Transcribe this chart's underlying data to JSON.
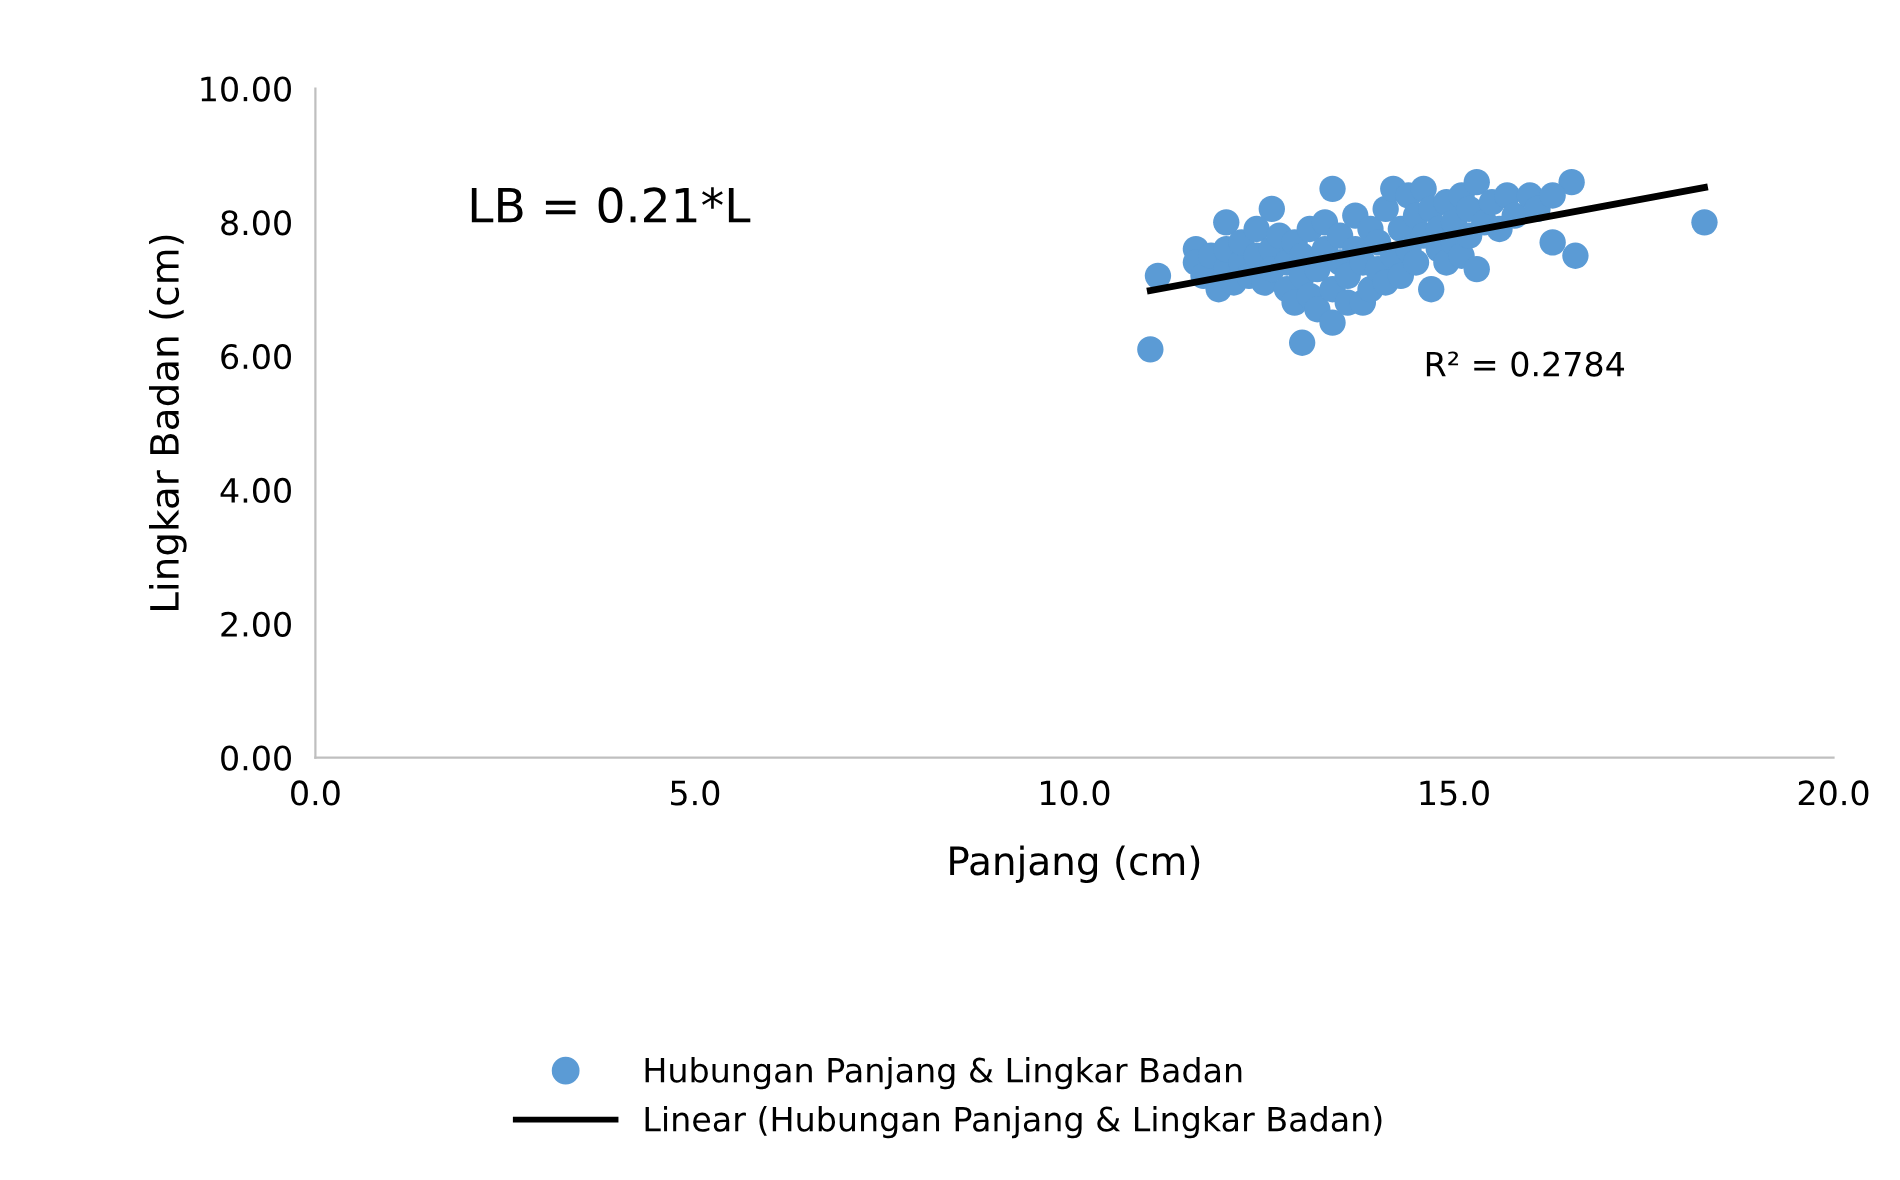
{
  "chart_data": {
    "type": "scatter",
    "xlabel": "Panjang (cm)",
    "ylabel": "Lingkar Badan (cm)",
    "xlim": [
      0,
      20
    ],
    "ylim": [
      0,
      10
    ],
    "xticks": [
      {
        "value": 0,
        "label": "0.0"
      },
      {
        "value": 5,
        "label": "5.0"
      },
      {
        "value": 10,
        "label": "10.0"
      },
      {
        "value": 15,
        "label": "15.0"
      },
      {
        "value": 20,
        "label": "20.0"
      }
    ],
    "yticks": [
      {
        "value": 0,
        "label": "0.00"
      },
      {
        "value": 2,
        "label": "2.00"
      },
      {
        "value": 4,
        "label": "4.00"
      },
      {
        "value": 6,
        "label": "6.00"
      },
      {
        "value": 8,
        "label": "8.00"
      },
      {
        "value": 10,
        "label": "10.00"
      }
    ],
    "grid": false,
    "legend": "bottom",
    "marker": "circle",
    "annotations": [
      "LB = 0.21*L",
      "R² = 0.2784"
    ],
    "series": [
      {
        "name": "Hubungan Panjang & Lingkar Badan",
        "color": "#5b9bd5",
        "x": [
          11.1,
          11.0,
          13.0,
          18.3,
          16.3,
          16.6,
          13.4,
          12.0,
          12.6,
          16.55,
          11.6,
          11.6,
          11.7,
          11.8,
          11.9,
          12.0,
          12.0,
          12.1,
          12.2,
          12.2,
          12.3,
          12.4,
          12.4,
          12.5,
          12.6,
          12.6,
          12.7,
          12.8,
          12.8,
          12.9,
          12.9,
          13.0,
          13.0,
          13.1,
          13.1,
          13.2,
          13.2,
          13.3,
          13.3,
          13.4,
          13.4,
          13.5,
          13.5,
          13.6,
          13.6,
          13.7,
          13.7,
          13.8,
          13.8,
          13.9,
          13.9,
          14.0,
          14.0,
          14.1,
          14.1,
          14.2,
          14.2,
          14.3,
          14.3,
          14.4,
          14.4,
          14.5,
          14.5,
          14.6,
          14.6,
          14.7,
          14.7,
          14.8,
          14.8,
          14.9,
          14.9,
          15.0,
          15.0,
          15.1,
          15.1,
          15.2,
          15.2,
          15.3,
          15.3,
          15.4,
          15.5,
          15.6,
          15.7,
          15.8,
          16.0,
          16.1,
          16.3
        ],
        "values": [
          7.2,
          6.1,
          6.2,
          8.0,
          7.7,
          7.5,
          8.5,
          8.0,
          8.2,
          8.6,
          7.6,
          7.4,
          7.2,
          7.5,
          7.0,
          7.3,
          7.6,
          7.1,
          7.4,
          7.7,
          7.2,
          7.5,
          7.9,
          7.1,
          7.6,
          7.3,
          7.8,
          7.0,
          7.4,
          7.7,
          6.8,
          7.2,
          7.5,
          7.9,
          6.9,
          6.7,
          7.3,
          7.6,
          8.0,
          6.5,
          7.0,
          7.4,
          7.8,
          6.8,
          7.2,
          7.6,
          8.1,
          6.8,
          7.4,
          7.0,
          7.9,
          7.3,
          7.7,
          8.2,
          7.1,
          8.5,
          7.5,
          7.9,
          7.2,
          8.4,
          7.6,
          8.1,
          7.4,
          7.8,
          8.5,
          7.0,
          8.2,
          7.6,
          7.9,
          8.3,
          7.4,
          8.0,
          7.7,
          8.4,
          7.5,
          8.2,
          7.8,
          8.6,
          7.3,
          8.0,
          8.3,
          7.9,
          8.4,
          8.1,
          8.4,
          8.2,
          8.4
        ]
      },
      {
        "name": "Linear (Hubungan Panjang & Lingkar Badan)",
        "type": "line",
        "color": "#000000",
        "marker": "none",
        "line_style": "solid",
        "x": [
          11.0,
          18.3
        ],
        "values": [
          6.98,
          8.52
        ]
      }
    ]
  }
}
